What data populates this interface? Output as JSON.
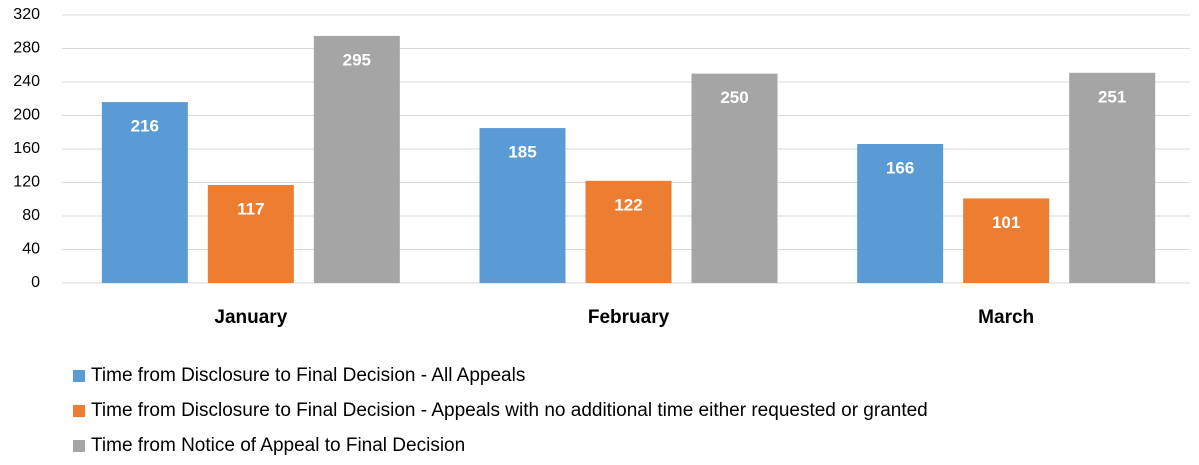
{
  "chart_data": {
    "type": "bar",
    "categories": [
      "January",
      "February",
      "March"
    ],
    "series": [
      {
        "name": "Time from Disclosure to Final Decision - All Appeals",
        "color": "#5b9bd5",
        "values": [
          216,
          185,
          166
        ]
      },
      {
        "name": "Time from Disclosure to Final Decision - Appeals with no additional time either requested or granted",
        "color": "#ed7d31",
        "values": [
          117,
          122,
          101
        ]
      },
      {
        "name": "Time from Notice of Appeal to Final Decision",
        "color": "#a5a5a5",
        "values": [
          295,
          250,
          251
        ]
      }
    ],
    "ylim": [
      0,
      320
    ],
    "yticks": [
      0,
      40,
      80,
      120,
      160,
      200,
      240,
      280,
      320
    ],
    "grid": true,
    "legend": "bottom"
  }
}
